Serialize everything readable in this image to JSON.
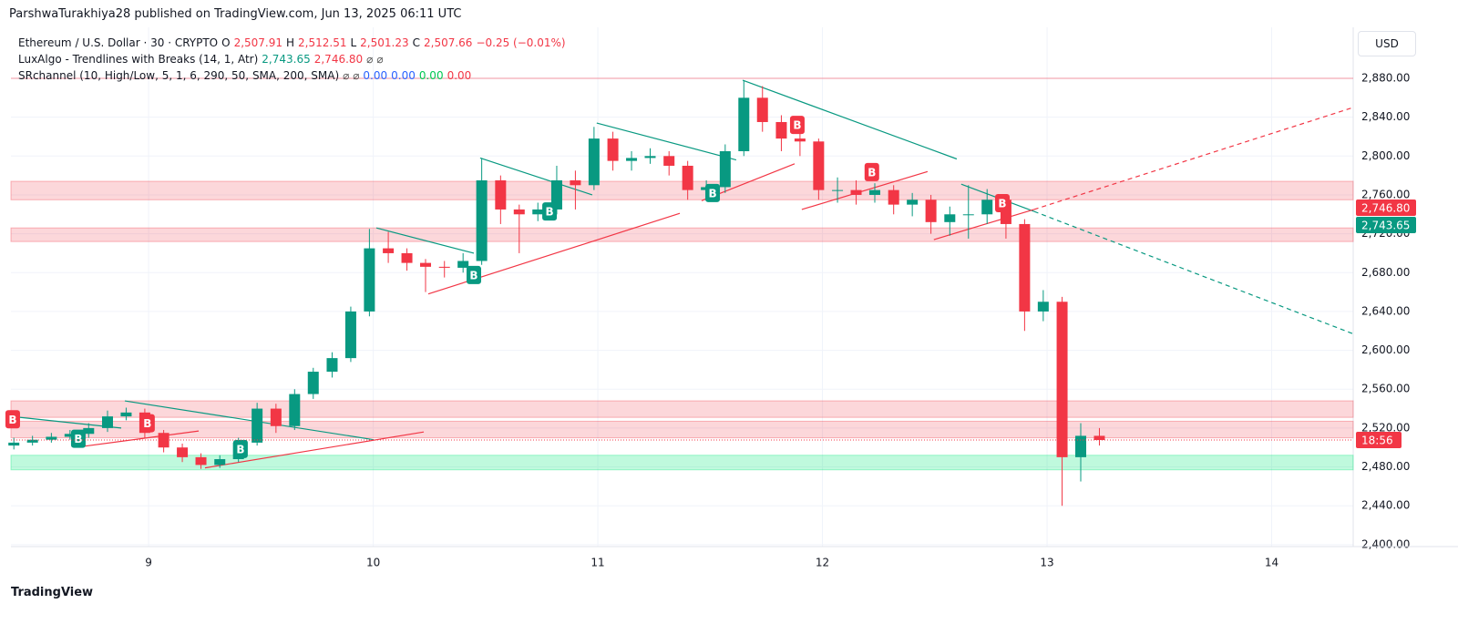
{
  "header": {
    "published": "ParshwaTurakhiya28 published on TradingView.com, Jun 13, 2025 06:11 UTC",
    "currency": "USD"
  },
  "legend": {
    "symbol": "Ethereum / U.S. Dollar · 30 · CRYPTO",
    "o_key": "O",
    "o": "2,507.91",
    "h_key": "H",
    "h": "2,512.51",
    "l_key": "L",
    "l": "2,501.23",
    "c_key": "C",
    "c": "2,507.66",
    "change": "−0.25 (−0.01%)",
    "ind1": "LuxAlgo - Trendlines with Breaks (14, 1, Atr)",
    "ind1_v1": "2,743.65",
    "ind1_v2": "2,746.80",
    "ind1_v3": "⌀",
    "ind1_v4": "⌀",
    "ind2": "SRchannel (10, High/Low, 5, 1, 6, 290, 50, SMA, 200, SMA)",
    "ind2_v1": "⌀ ⌀",
    "ind2_v2": "0.00",
    "ind2_v3": "0.00",
    "ind2_v4": "0.00",
    "ind2_v5": "0.00"
  },
  "footer": {
    "brand": "TradingView"
  },
  "chart_data": {
    "type": "candlestick",
    "up_color": "#089981",
    "down_color": "#f23645",
    "grid": true,
    "xlim": [
      8.387,
      14.363
    ],
    "xticks": [
      9,
      10,
      11,
      12,
      13,
      14
    ],
    "ylim": [
      2398,
      2932.5
    ],
    "yticks": [
      {
        "value": 2400,
        "label": "2,400.00"
      },
      {
        "value": 2440,
        "label": "2,440.00"
      },
      {
        "value": 2480,
        "label": "2,480.00"
      },
      {
        "value": 2520,
        "label": "2,520.00"
      },
      {
        "value": 2560,
        "label": "2,560.00"
      },
      {
        "value": 2600,
        "label": "2,600.00"
      },
      {
        "value": 2640,
        "label": "2,640.00"
      },
      {
        "value": 2680,
        "label": "2,680.00"
      },
      {
        "value": 2720,
        "label": "2,720.00"
      },
      {
        "value": 2760,
        "label": "2,760.00"
      },
      {
        "value": 2800,
        "label": "2,800.00"
      },
      {
        "value": 2840,
        "label": "2,840.00"
      },
      {
        "value": 2880,
        "label": "2,880.00"
      }
    ],
    "x": [
      8.4,
      8.483,
      8.567,
      8.65,
      8.733,
      8.817,
      8.9,
      8.983,
      9.067,
      9.15,
      9.233,
      9.317,
      9.4,
      9.483,
      9.567,
      9.65,
      9.733,
      9.817,
      9.9,
      9.983,
      10.067,
      10.15,
      10.233,
      10.317,
      10.4,
      10.483,
      10.567,
      10.65,
      10.733,
      10.817,
      10.9,
      10.983,
      11.067,
      11.15,
      11.233,
      11.317,
      11.4,
      11.483,
      11.567,
      11.65,
      11.733,
      11.817,
      11.9,
      11.983,
      12.067,
      12.15,
      12.233,
      12.317,
      12.4,
      12.483,
      12.567,
      12.65,
      12.733,
      12.817,
      12.9,
      12.983,
      13.067,
      13.15,
      13.233
    ],
    "open": [
      2502,
      2505,
      2508,
      2511,
      2514,
      2520,
      2532,
      2536,
      2515,
      2500,
      2490,
      2482,
      2488,
      2505,
      2540,
      2522,
      2555,
      2578,
      2592,
      2640,
      2705,
      2700,
      2690,
      2686,
      2685,
      2692,
      2775,
      2745,
      2740,
      2745,
      2775,
      2770,
      2818,
      2795,
      2798,
      2800,
      2790,
      2765,
      2768,
      2805,
      2860,
      2835,
      2818,
      2815,
      2765,
      2765,
      2760,
      2765,
      2750,
      2755,
      2732,
      2740,
      2740,
      2755,
      2730,
      2640,
      2650,
      2490,
      2512
    ],
    "high": [
      2510,
      2512,
      2515,
      2518,
      2525,
      2538,
      2541,
      2540,
      2518,
      2504,
      2494,
      2492,
      2510,
      2546,
      2545,
      2560,
      2582,
      2598,
      2645,
      2725,
      2722,
      2705,
      2694,
      2692,
      2700,
      2798,
      2780,
      2750,
      2752,
      2790,
      2785,
      2830,
      2825,
      2805,
      2808,
      2805,
      2795,
      2775,
      2812,
      2878,
      2872,
      2842,
      2824,
      2818,
      2778,
      2775,
      2772,
      2770,
      2762,
      2760,
      2748,
      2770,
      2766,
      2760,
      2735,
      2662,
      2655,
      2525,
      2520
    ],
    "low": [
      2498,
      2502,
      2505,
      2508,
      2510,
      2516,
      2528,
      2510,
      2495,
      2485,
      2478,
      2479,
      2485,
      2502,
      2515,
      2518,
      2550,
      2572,
      2588,
      2635,
      2690,
      2682,
      2660,
      2675,
      2680,
      2688,
      2730,
      2700,
      2733,
      2740,
      2745,
      2765,
      2785,
      2785,
      2792,
      2780,
      2755,
      2755,
      2762,
      2800,
      2825,
      2805,
      2800,
      2755,
      2752,
      2750,
      2752,
      2740,
      2738,
      2720,
      2718,
      2715,
      2730,
      2715,
      2620,
      2630,
      2440,
      2465,
      2502
    ],
    "close": [
      2505,
      2508,
      2511,
      2514,
      2520,
      2532,
      2536,
      2515,
      2500,
      2490,
      2482,
      2488,
      2505,
      2540,
      2522,
      2555,
      2578,
      2592,
      2640,
      2705,
      2700,
      2690,
      2686,
      2685,
      2692,
      2775,
      2745,
      2740,
      2745,
      2775,
      2770,
      2818,
      2795,
      2798,
      2800,
      2790,
      2765,
      2768,
      2805,
      2860,
      2835,
      2818,
      2815,
      2765,
      2765,
      2760,
      2765,
      2750,
      2755,
      2732,
      2740,
      2740,
      2755,
      2730,
      2640,
      2650,
      2490,
      2512,
      2507.66
    ],
    "zones": [
      {
        "low": 2755,
        "high": 2774,
        "color": "#f23645"
      },
      {
        "low": 2712,
        "high": 2726,
        "color": "#f23645"
      },
      {
        "low": 2531,
        "high": 2548,
        "color": "#f23645"
      },
      {
        "low": 2510,
        "high": 2527,
        "color": "#f23645"
      },
      {
        "low": 2477,
        "high": 2492,
        "color": "#00e676"
      }
    ],
    "levels": [
      {
        "value": 2880,
        "color": "#f23645"
      }
    ],
    "trendlines": [
      {
        "x": [
          8.387,
          8.878
        ],
        "y": [
          2532,
          2520
        ],
        "color": "#089981",
        "dashed": false
      },
      {
        "x": [
          8.894,
          10.002
        ],
        "y": [
          2548,
          2508
        ],
        "color": "#089981",
        "dashed": false
      },
      {
        "x": [
          8.703,
          9.223
        ],
        "y": [
          2501,
          2517
        ],
        "color": "#f23645",
        "dashed": false
      },
      {
        "x": [
          9.251,
          10.225
        ],
        "y": [
          2479,
          2516
        ],
        "color": "#f23645",
        "dashed": false
      },
      {
        "x": [
          10.014,
          10.448
        ],
        "y": [
          2726,
          2700
        ],
        "color": "#089981",
        "dashed": false
      },
      {
        "x": [
          10.245,
          11.365
        ],
        "y": [
          2658,
          2741
        ],
        "color": "#f23645",
        "dashed": false
      },
      {
        "x": [
          10.476,
          10.975
        ],
        "y": [
          2798,
          2760
        ],
        "color": "#089981",
        "dashed": false
      },
      {
        "x": [
          10.995,
          11.616
        ],
        "y": [
          2834,
          2796
        ],
        "color": "#089981",
        "dashed": false
      },
      {
        "x": [
          11.462,
          11.876
        ],
        "y": [
          2754,
          2792
        ],
        "color": "#f23645",
        "dashed": false
      },
      {
        "x": [
          11.645,
          12.598
        ],
        "y": [
          2878,
          2797
        ],
        "color": "#089981",
        "dashed": false
      },
      {
        "x": [
          11.908,
          12.468
        ],
        "y": [
          2745,
          2784
        ],
        "color": "#f23645",
        "dashed": false
      },
      {
        "x": [
          12.618,
          12.942
        ],
        "y": [
          2771,
          2743
        ],
        "color": "#089981",
        "dashed": false
      },
      {
        "x": [
          12.942,
          14.363
        ],
        "y": [
          2743,
          2617
        ],
        "color": "#089981",
        "dashed": true
      },
      {
        "x": [
          12.496,
          12.942
        ],
        "y": [
          2714,
          2745
        ],
        "color": "#f23645",
        "dashed": false
      },
      {
        "x": [
          12.942,
          14.363
        ],
        "y": [
          2745,
          2850
        ],
        "color": "#f23645",
        "dashed": true
      }
    ],
    "markers": [
      {
        "label": "B",
        "x": 8.687,
        "y": 2509,
        "color": "#089981"
      },
      {
        "label": "B",
        "x": 9.409,
        "y": 2498.5,
        "color": "#089981"
      },
      {
        "label": "B",
        "x": 10.448,
        "y": 2677.5,
        "color": "#089981"
      },
      {
        "label": "B",
        "x": 10.785,
        "y": 2743,
        "color": "#089981"
      },
      {
        "label": "B",
        "x": 11.511,
        "y": 2762,
        "color": "#089981"
      },
      {
        "label": "B",
        "x": 8.395,
        "y": 2529,
        "color": "#f23645"
      },
      {
        "label": "B",
        "x": 8.995,
        "y": 2525,
        "color": "#f23645"
      },
      {
        "label": "B",
        "x": 11.888,
        "y": 2832,
        "color": "#f23645"
      },
      {
        "label": "B",
        "x": 12.22,
        "y": 2783.5,
        "color": "#f23645"
      },
      {
        "label": "B",
        "x": 12.801,
        "y": 2751.5,
        "color": "#f23645"
      }
    ],
    "price_badges": [
      {
        "value": 2746.8,
        "label": "2,746.80",
        "color": "#f23645"
      },
      {
        "value": 2743.65,
        "label": "2,743.65",
        "color": "#089981"
      }
    ],
    "price_line": {
      "value": 2507.66,
      "countdown": "18:56",
      "color": "#f23645"
    }
  }
}
